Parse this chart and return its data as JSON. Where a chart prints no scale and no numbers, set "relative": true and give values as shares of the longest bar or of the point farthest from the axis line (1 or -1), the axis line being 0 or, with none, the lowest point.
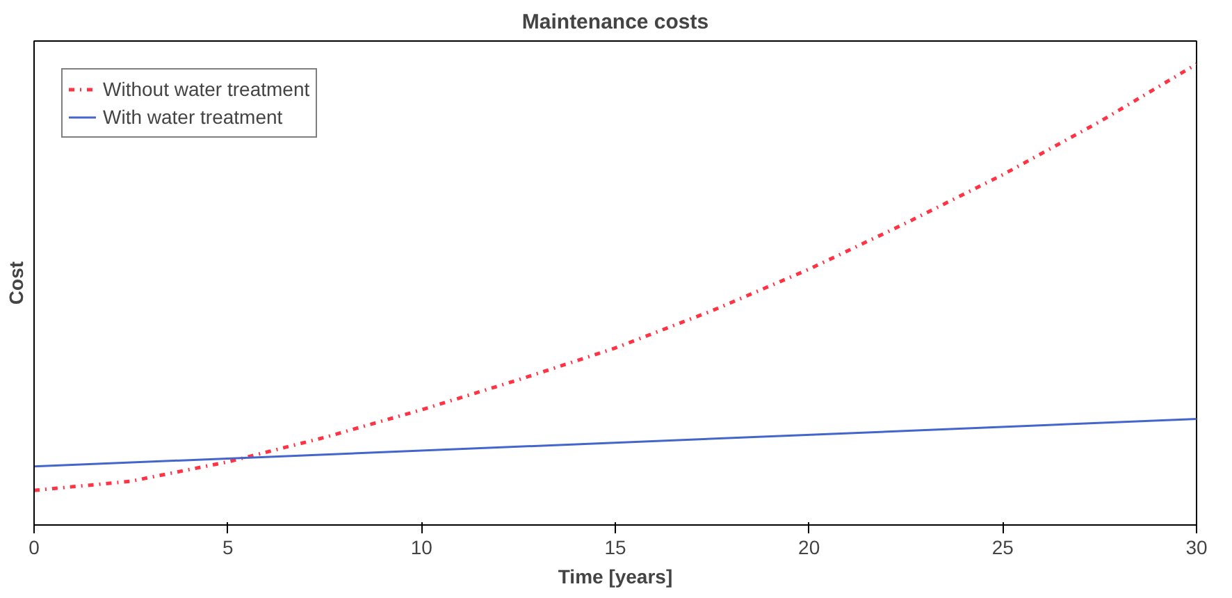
{
  "chart_data": {
    "type": "line",
    "title": "Maintenance costs",
    "xlabel": "Time [years]",
    "ylabel": "Cost",
    "relative": true,
    "xlim": [
      0,
      30
    ],
    "xticks": [
      0,
      5,
      10,
      15,
      20,
      25,
      30
    ],
    "grid": false,
    "legend": "top left",
    "marker": "none",
    "series": [
      {
        "name": "Without water treatment",
        "color": "#ff3344",
        "line_style": "dotted",
        "x": [
          0,
          2.5,
          5,
          7.5,
          10,
          12.5,
          15,
          17.5,
          20,
          22.5,
          25,
          27.5,
          30
        ],
        "values": [
          0.075,
          0.095,
          0.137,
          0.19,
          0.25,
          0.315,
          0.384,
          0.465,
          0.555,
          0.655,
          0.76,
          0.875,
          1
        ]
      },
      {
        "name": "With water treatment",
        "color": "#4466cc",
        "line_style": "solid",
        "x": [
          0,
          30
        ],
        "values": [
          0.127,
          0.23
        ]
      }
    ]
  }
}
